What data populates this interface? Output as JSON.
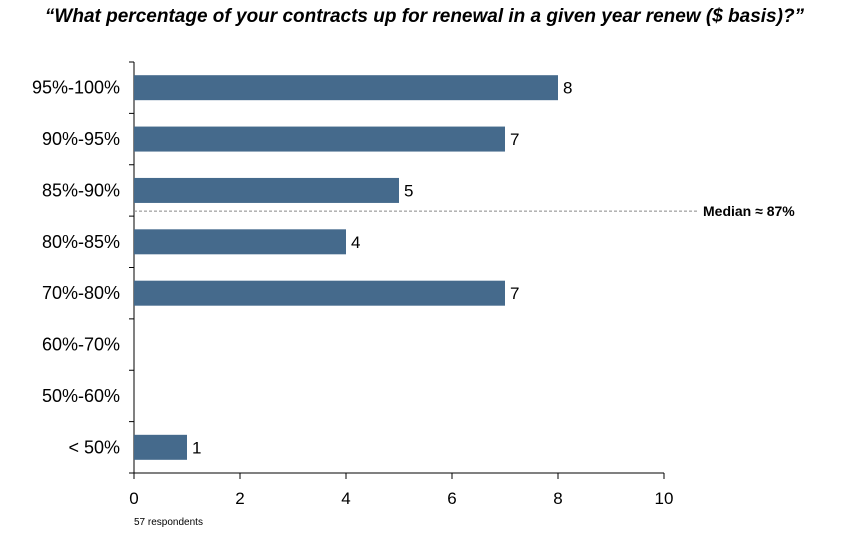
{
  "chart_data": {
    "type": "bar",
    "orientation": "horizontal",
    "title": "“What percentage of your contracts up for renewal in a given year renew ($ basis)?”",
    "categories": [
      "95%-100%",
      "90%-95%",
      "85%-90%",
      "80%-85%",
      "70%-80%",
      "60%-70%",
      "50%-60%",
      "< 50%"
    ],
    "values": [
      8,
      7,
      5,
      4,
      7,
      0,
      0,
      1
    ],
    "data_labels": [
      "8",
      "7",
      "5",
      "4",
      "7",
      "",
      "",
      "1"
    ],
    "xlim": [
      0,
      10
    ],
    "xticks": [
      0,
      2,
      4,
      6,
      8,
      10
    ],
    "bar_color": "#456a8c",
    "grid": false,
    "legend": "none",
    "median_line": {
      "label": "Median  ≈ 87%",
      "position_category": "between 85%-90% and 80%-85%"
    },
    "footnote": "57 respondents"
  }
}
